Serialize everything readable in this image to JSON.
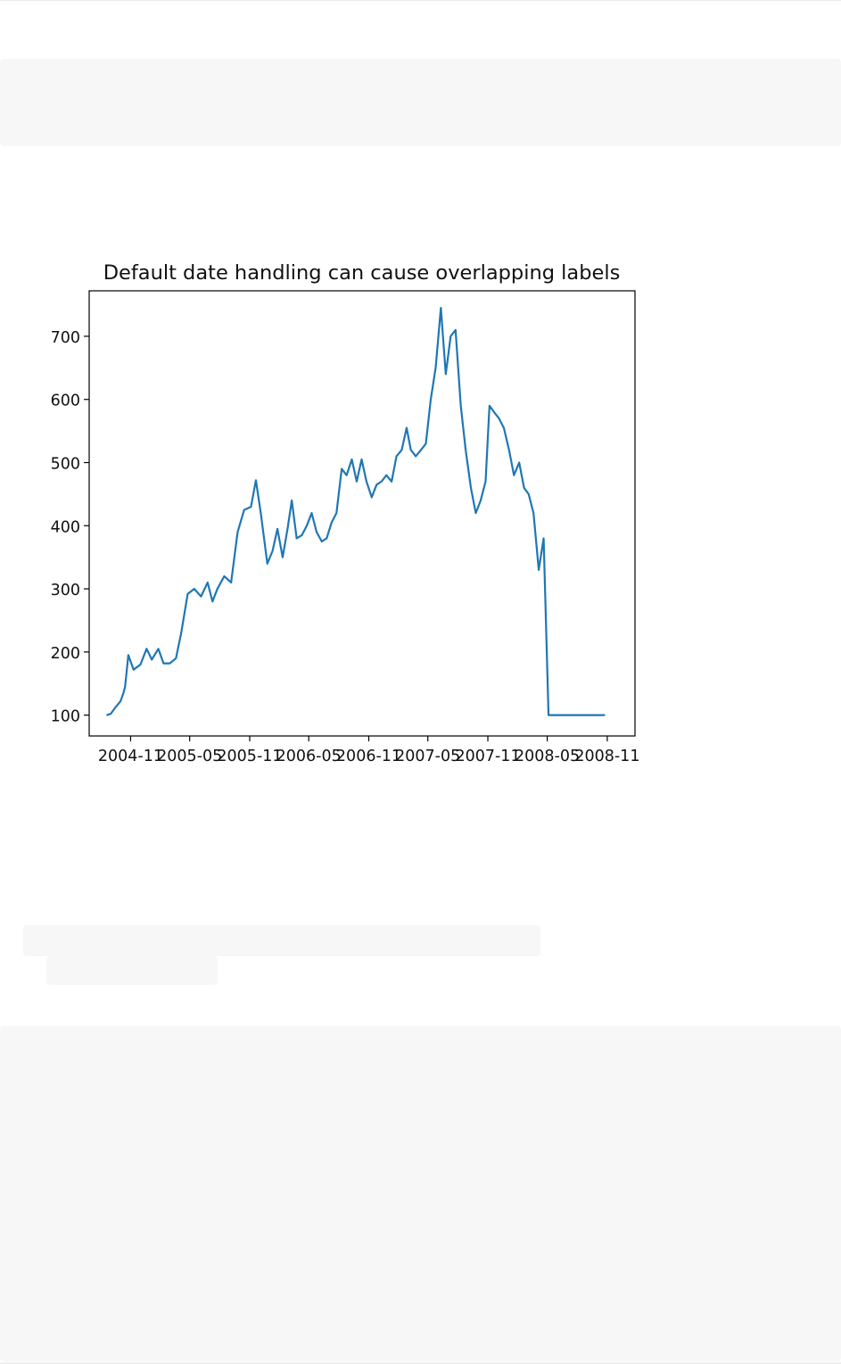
{
  "chart_data": {
    "type": "line",
    "title": "Default date handling can cause overlapping labels",
    "xlabel": "",
    "ylabel": "",
    "x_tick_labels": [
      "2004-11",
      "2005-05",
      "2005-11",
      "2006-05",
      "2006-11",
      "2007-05",
      "2007-11",
      "2008-05",
      "2008-11"
    ],
    "y_tick_labels": [
      "100",
      "200",
      "300",
      "400",
      "500",
      "600",
      "700"
    ],
    "y_ticks": [
      100,
      200,
      300,
      400,
      500,
      600,
      700
    ],
    "ylim": [
      67,
      772
    ],
    "xlim": [
      "2004-06-27",
      "2009-01-25"
    ],
    "grid": false,
    "line_color": "#1f77b4",
    "series": [
      {
        "x": [
          "2004-08-19",
          "2004-09-01",
          "2004-09-15",
          "2004-10-01",
          "2004-10-10",
          "2004-10-15",
          "2004-10-25",
          "2004-11-10",
          "2004-12-01",
          "2004-12-20",
          "2005-01-05",
          "2005-01-25",
          "2005-02-10",
          "2005-03-01",
          "2005-03-20",
          "2005-04-05",
          "2005-04-25",
          "2005-05-15",
          "2005-06-05",
          "2005-06-25",
          "2005-07-10",
          "2005-07-25",
          "2005-08-15",
          "2005-09-05",
          "2005-09-25",
          "2005-10-15",
          "2005-11-05",
          "2005-11-20",
          "2005-12-05",
          "2005-12-25",
          "2006-01-10",
          "2006-01-25",
          "2006-02-10",
          "2006-02-25",
          "2006-03-10",
          "2006-03-25",
          "2006-04-10",
          "2006-04-25",
          "2006-05-10",
          "2006-05-25",
          "2006-06-10",
          "2006-06-25",
          "2006-07-10",
          "2006-07-25",
          "2006-08-10",
          "2006-08-25",
          "2006-09-10",
          "2006-09-25",
          "2006-10-10",
          "2006-10-25",
          "2006-11-10",
          "2006-11-25",
          "2006-12-10",
          "2006-12-25",
          "2007-01-10",
          "2007-01-25",
          "2007-02-10",
          "2007-02-25",
          "2007-03-10",
          "2007-03-25",
          "2007-04-10",
          "2007-04-25",
          "2007-05-10",
          "2007-05-25",
          "2007-06-10",
          "2007-06-25",
          "2007-07-10",
          "2007-07-25",
          "2007-08-10",
          "2007-08-25",
          "2007-09-10",
          "2007-09-25",
          "2007-10-10",
          "2007-10-25",
          "2007-11-06",
          "2007-11-20",
          "2007-12-05",
          "2007-12-20",
          "2008-01-05",
          "2008-01-20",
          "2008-02-05",
          "2008-02-20",
          "2008-03-05",
          "2008-03-20",
          "2008-04-05",
          "2008-04-20",
          "2008-05-05",
          "2008-05-20",
          "2008-06-05",
          "2008-06-20",
          "2008-07-05",
          "2008-07-20",
          "2008-08-05",
          "2008-08-20",
          "2008-09-05",
          "2008-09-20",
          "2008-10-05",
          "2008-10-15",
          "2008-10-25"
        ],
        "values": [
          100,
          102,
          112,
          122,
          135,
          145,
          195,
          172,
          180,
          205,
          188,
          205,
          182,
          182,
          190,
          230,
          292,
          300,
          288,
          310,
          280,
          300,
          320,
          310,
          390,
          425,
          430,
          472,
          420,
          340,
          360,
          395,
          350,
          395,
          440,
          380,
          385,
          400,
          420,
          390,
          375,
          380,
          405,
          420,
          490,
          480,
          505,
          470,
          505,
          470,
          445,
          465,
          470,
          480,
          470,
          510,
          520,
          555,
          520,
          510,
          520,
          530,
          600,
          650,
          745,
          640,
          700,
          710,
          590,
          520,
          460,
          420,
          440,
          470,
          590,
          580,
          570,
          555,
          520,
          480,
          500,
          460,
          450,
          420,
          330,
          380,
          100,
          100,
          100,
          100,
          100,
          100,
          100,
          100,
          100,
          100,
          100,
          100,
          100
        ]
      }
    ]
  }
}
